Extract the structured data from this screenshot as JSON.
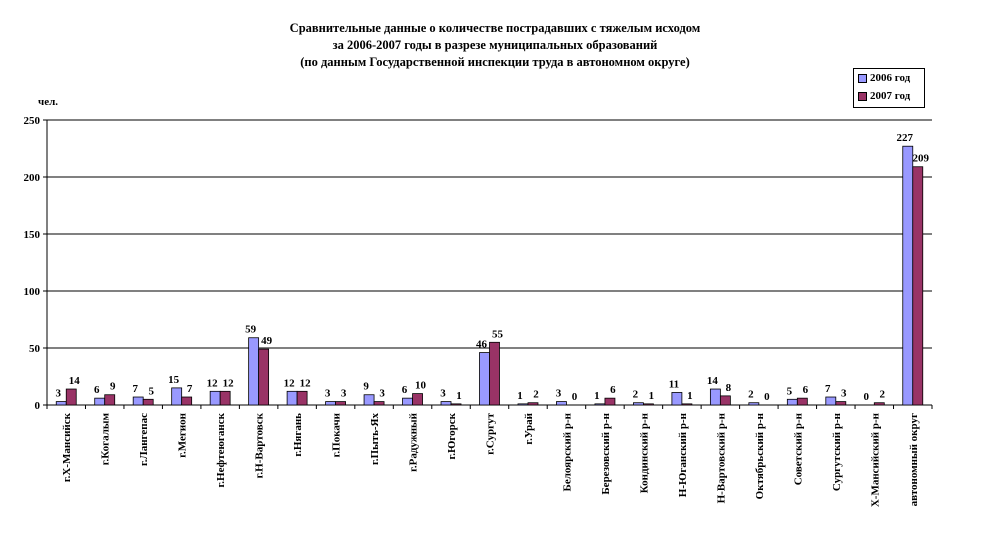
{
  "title": {
    "line1": "Сравнительные данные о количестве пострадавших с тяжелым исходом",
    "line2": "за 2006-2007 годы  в разрезе муниципальных образований",
    "line3": "(по данным Государственной инспекции труда в автономном округе)"
  },
  "unit_label": "чел.",
  "legend": [
    {
      "label": "2006 год",
      "color": "#9999ff"
    },
    {
      "label": "2007 год",
      "color": "#993366"
    }
  ],
  "chart_data": {
    "type": "bar",
    "title": "Сравнительные данные о количестве пострадавших с тяжелым исходом за 2006-2007 годы  в разрезе муниципальных образований (по данным Государственной инспекции труда в автономном округе)",
    "ylabel": "чел.",
    "ylim": [
      0,
      250
    ],
    "yticks": [
      0,
      50,
      100,
      150,
      200,
      250
    ],
    "grid": true,
    "legend_position": "top-right",
    "categories": [
      "г.Х-Мансийск",
      "г.Когалым",
      "г.Лангепас",
      "г.Мегион",
      "г.Нефтеюганск",
      "г.Н-Вартовск",
      "г.Нягань",
      "г.Покачи",
      "г.Пыть-Ях",
      "г.Радужный",
      "г.Югорск",
      "г.Сургут",
      "г.Урай",
      "Белоярский р-н",
      "Березовский р-н",
      "Кондинский р-н",
      "Н-Юганский р-н",
      "Н-Вартовский р-н",
      "Октябрьский р-н",
      "Советский р-н",
      "Сургутский р-н",
      "Х-Мансийский р-н",
      "автономный округ"
    ],
    "series": [
      {
        "name": "2006 год",
        "color": "#9999ff",
        "values": [
          3,
          6,
          7,
          15,
          12,
          59,
          12,
          3,
          9,
          6,
          3,
          46,
          1,
          3,
          1,
          2,
          11,
          14,
          2,
          5,
          7,
          0,
          227
        ]
      },
      {
        "name": "2007 год",
        "color": "#993366",
        "values": [
          14,
          9,
          5,
          7,
          12,
          49,
          12,
          3,
          3,
          10,
          1,
          55,
          2,
          0,
          6,
          1,
          1,
          8,
          0,
          6,
          3,
          2,
          209
        ]
      }
    ]
  }
}
